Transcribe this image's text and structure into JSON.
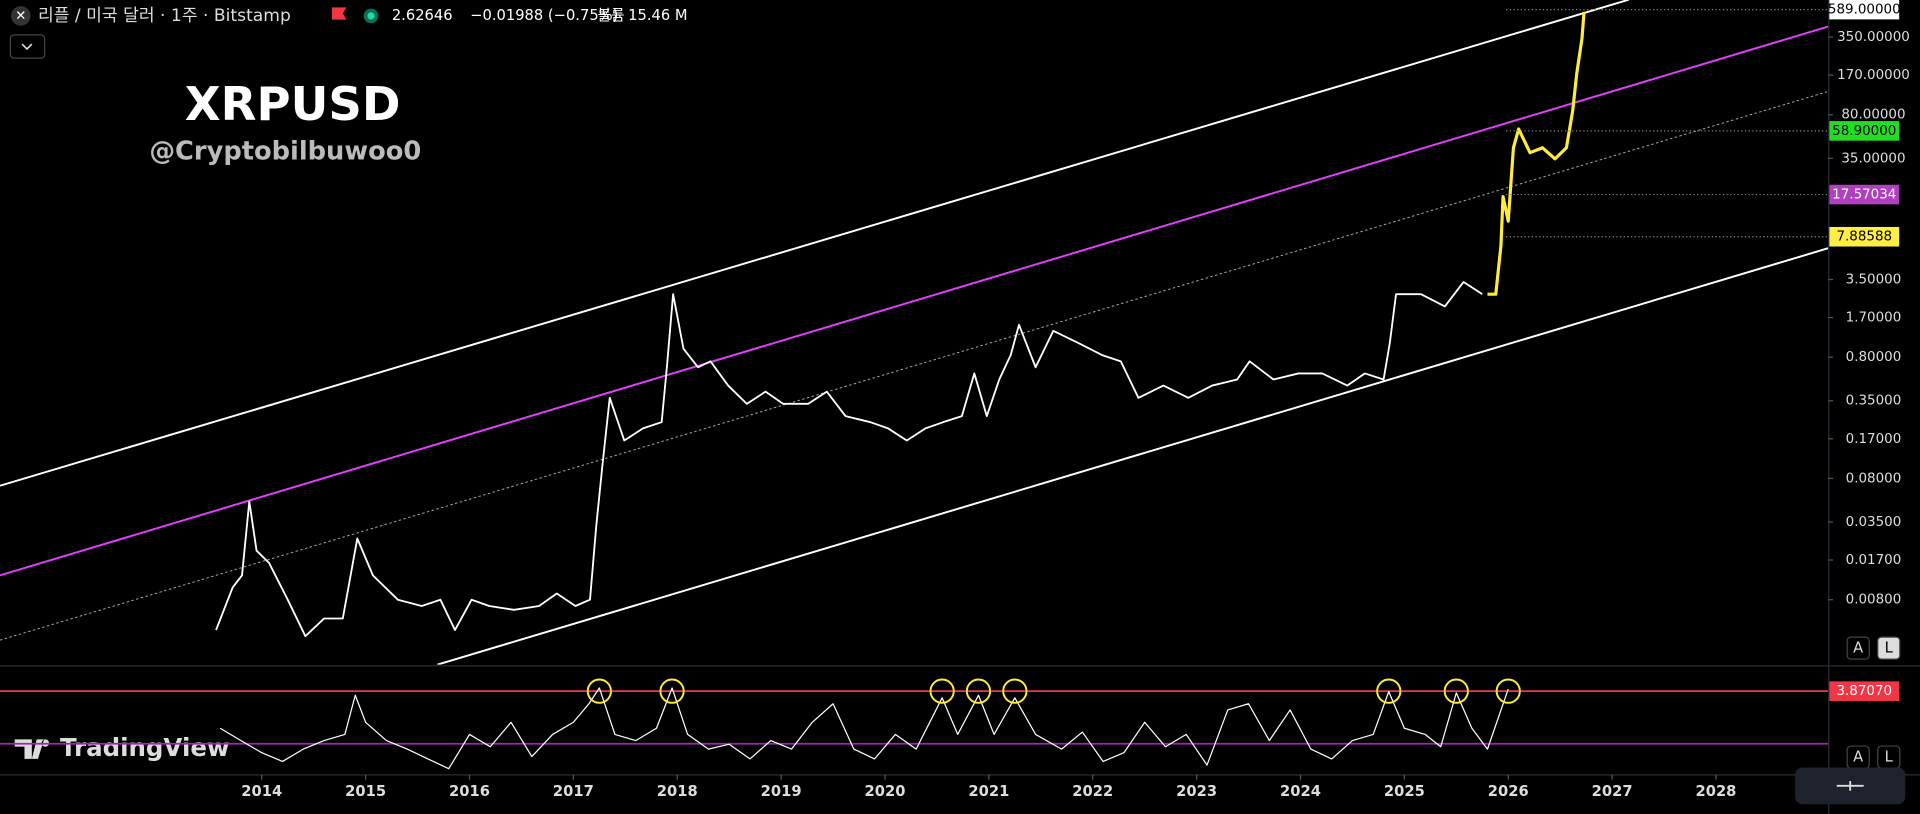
{
  "header": {
    "symbol": "리플 / 미국 달러 · 1주 · Bitstamp",
    "price": "2.62646",
    "change": "−0.01988 (−0.75%)",
    "volume_label": "볼륨",
    "volume": "15.46 M"
  },
  "buttons": [
    "A",
    "L"
  ],
  "branding": "TradingView",
  "chart_data": [
    {
      "type": "line",
      "title": "XRPUSD",
      "subtitle": "@Cryptobilbuwoo0",
      "log_scale": true,
      "grid": false,
      "xlim": [
        2011.48,
        2029.08
      ],
      "xticks": [
        2014,
        2015,
        2016,
        2017,
        2018,
        2019,
        2020,
        2021,
        2022,
        2023,
        2024,
        2025,
        2026,
        2027,
        2028
      ],
      "ylim": [
        0.00233,
        707
      ],
      "yticks": [
        {
          "value": 350,
          "label": "350.00000"
        },
        {
          "value": 170,
          "label": "170.00000"
        },
        {
          "value": 80,
          "label": "80.00000"
        },
        {
          "value": 35,
          "label": "35.00000"
        },
        {
          "value": 3.5,
          "label": "3.50000"
        },
        {
          "value": 1.7,
          "label": "1.70000"
        },
        {
          "value": 0.8,
          "label": "0.80000"
        },
        {
          "value": 0.35,
          "label": "0.35000"
        },
        {
          "value": 0.17,
          "label": "0.17000"
        },
        {
          "value": 0.08,
          "label": "0.08000"
        },
        {
          "value": 0.035,
          "label": "0.03500"
        },
        {
          "value": 0.017,
          "label": "0.01700"
        },
        {
          "value": 0.008,
          "label": "0.00800"
        }
      ],
      "series": [
        {
          "color": "#ffffff",
          "x": [
            2013.56,
            2013.72,
            2013.81,
            2013.88,
            2013.95,
            2014.07,
            2014.25,
            2014.42,
            2014.6,
            2014.78,
            2014.92,
            2015.07,
            2015.31,
            2015.54,
            2015.72,
            2015.86,
            2016.02,
            2016.19,
            2016.43,
            2016.67,
            2016.84,
            2017.02,
            2017.16,
            2017.22,
            2017.28,
            2017.35,
            2017.49,
            2017.67,
            2017.85,
            2017.9,
            2017.96,
            2018.06,
            2018.2,
            2018.32,
            2018.49,
            2018.67,
            2018.85,
            2019.02,
            2019.26,
            2019.44,
            2019.62,
            2019.86,
            2020.03,
            2020.21,
            2020.39,
            2020.56,
            2020.74,
            2020.86,
            2020.98,
            2021.1,
            2021.21,
            2021.29,
            2021.45,
            2021.62,
            2021.86,
            2022.09,
            2022.27,
            2022.44,
            2022.68,
            2022.92,
            2023.15,
            2023.39,
            2023.51,
            2023.74,
            2023.98,
            2024.21,
            2024.45,
            2024.62,
            2024.8,
            2024.86,
            2024.92,
            2025.16,
            2025.39,
            2025.57,
            2025.75
          ],
          "values": [
            0.0045,
            0.0101,
            0.0127,
            0.0517,
            0.0203,
            0.0161,
            0.008,
            0.004,
            0.0056,
            0.0056,
            0.0256,
            0.0127,
            0.008,
            0.0071,
            0.008,
            0.0045,
            0.008,
            0.0071,
            0.0066,
            0.0071,
            0.009,
            0.0071,
            0.008,
            0.0323,
            0.1034,
            0.37,
            0.1645,
            0.207,
            0.233,
            0.661,
            2.65,
            0.94,
            0.661,
            0.74,
            0.467,
            0.33,
            0.416,
            0.33,
            0.33,
            0.416,
            0.2615,
            0.233,
            0.207,
            0.1645,
            0.207,
            0.233,
            0.2615,
            0.588,
            0.2615,
            0.524,
            0.833,
            1.48,
            0.661,
            1.32,
            1.05,
            0.833,
            0.74,
            0.37,
            0.467,
            0.37,
            0.467,
            0.524,
            0.74,
            0.524,
            0.588,
            0.588,
            0.467,
            0.588,
            0.524,
            1.05,
            2.65,
            2.65,
            2.1,
            3.34,
            2.65
          ]
        },
        {
          "color": "#ffeb3b",
          "x": [
            2025.8,
            2025.88,
            2025.93,
            2025.95,
            2026.0,
            2026.05,
            2026.1,
            2026.21,
            2026.33,
            2026.45,
            2026.56,
            2026.62,
            2026.66,
            2026.71,
            2026.73
          ],
          "values": [
            2.65,
            2.65,
            6.7,
            16.9,
            10.6,
            42.7,
            61,
            38.9,
            42.7,
            34.6,
            42.7,
            85.4,
            176,
            340,
            564
          ]
        }
      ],
      "trendlines": [
        {
          "color": "#ffffff",
          "dashed": false,
          "x": [
            2011.48,
            2027.16
          ],
          "values": [
            0.0697,
            711
          ]
        },
        {
          "color": "#e040fb",
          "dashed": false,
          "x": [
            2011.48,
            2029.08
          ],
          "values": [
            0.0127,
            427
          ]
        },
        {
          "color": "#aaaaaa",
          "dashed": true,
          "x": [
            2011.48,
            2029.08
          ],
          "values": [
            0.00371,
            124.5
          ]
        },
        {
          "color": "#ffffff",
          "dashed": false,
          "x": [
            2015.69,
            2029.08
          ],
          "values": [
            0.00233,
            6.34
          ]
        }
      ],
      "price_lines": [
        {
          "value": 589,
          "label": "589.00000",
          "color": "#ffffff",
          "text_color": "#000000"
        },
        {
          "value": 58.9,
          "label": "58.90000",
          "color": "#22dd22",
          "text_color": "#000000"
        },
        {
          "value": 17.57034,
          "label": "17.57034",
          "color": "#b040c0",
          "text_color": "#ffffff"
        },
        {
          "value": 7.88588,
          "label": "7.88588",
          "color": "#ffee44",
          "text_color": "#000000"
        }
      ]
    },
    {
      "type": "line",
      "color": "#ffffff",
      "xlim": [
        2011.48,
        2029.08
      ],
      "ylim": [
        0,
        5
      ],
      "x": [
        2013.6,
        2013.8,
        2014.0,
        2014.2,
        2014.4,
        2014.6,
        2014.8,
        2014.9,
        2015.0,
        2015.2,
        2015.4,
        2015.6,
        2015.8,
        2016.0,
        2016.2,
        2016.4,
        2016.6,
        2016.8,
        2017.0,
        2017.15,
        2017.25,
        2017.4,
        2017.6,
        2017.8,
        2017.95,
        2018.1,
        2018.3,
        2018.5,
        2018.7,
        2018.9,
        2019.1,
        2019.3,
        2019.5,
        2019.7,
        2019.9,
        2020.1,
        2020.3,
        2020.55,
        2020.7,
        2020.9,
        2021.05,
        2021.25,
        2021.45,
        2021.7,
        2021.9,
        2022.1,
        2022.3,
        2022.5,
        2022.7,
        2022.9,
        2023.1,
        2023.3,
        2023.5,
        2023.7,
        2023.9,
        2024.1,
        2024.3,
        2024.5,
        2024.7,
        2024.85,
        2025.0,
        2025.2,
        2025.35,
        2025.5,
        2025.65,
        2025.8,
        2026.0
      ],
      "values": [
        2.13,
        1.55,
        0.98,
        0.57,
        1.15,
        1.55,
        1.84,
        3.68,
        2.41,
        1.55,
        1.15,
        0.69,
        0.23,
        1.84,
        1.26,
        2.41,
        0.8,
        1.84,
        2.41,
        3.28,
        4.02,
        1.84,
        1.55,
        2.13,
        4.02,
        1.84,
        1.15,
        1.38,
        0.69,
        1.55,
        1.15,
        2.41,
        3.28,
        1.15,
        0.69,
        1.84,
        1.15,
        3.56,
        1.84,
        3.68,
        1.84,
        3.56,
        1.84,
        1.15,
        1.95,
        0.57,
        0.98,
        2.41,
        1.26,
        1.84,
        0.4,
        2.99,
        3.28,
        1.55,
        2.99,
        1.15,
        0.69,
        1.55,
        1.84,
        3.85,
        2.13,
        1.84,
        1.26,
        3.79,
        2.13,
        1.15,
        3.97
      ],
      "levels": [
        {
          "value": 3.8707,
          "label": "3.87070",
          "color": "#f23645"
        },
        {
          "value": 1.4,
          "color": "#9c27b0"
        }
      ],
      "highlight_x": [
        2017.25,
        2017.95,
        2020.55,
        2020.9,
        2021.25,
        2024.85,
        2025.5,
        2026.0
      ],
      "highlight_color": "#ffeb3b"
    }
  ]
}
